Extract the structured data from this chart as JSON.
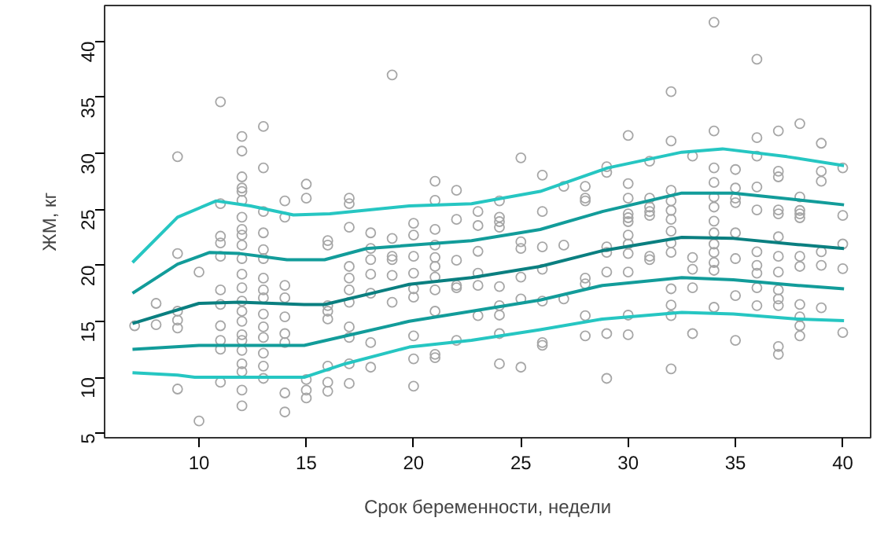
{
  "chart_data": {
    "type": "scatter",
    "xlabel": "Срок беременности, недели",
    "ylabel": "ЖМ, кг",
    "xlim": [
      5.6,
      41.3
    ],
    "ylim": [
      4.6,
      43.2
    ],
    "xticks": [
      10,
      15,
      20,
      25,
      30,
      35,
      40
    ],
    "yticks": [
      5,
      10,
      15,
      20,
      25,
      30,
      35,
      40
    ],
    "grid": false,
    "series": [
      {
        "type": "scatter",
        "color": "#a6a6a6",
        "marker": "circle",
        "x": [
          7,
          8,
          8,
          9,
          9,
          9,
          9,
          9,
          9,
          10,
          10,
          11,
          11,
          11,
          11,
          11,
          11,
          11,
          11,
          11,
          11,
          11,
          12,
          12,
          12,
          12,
          12,
          12,
          12,
          12,
          12,
          12,
          12,
          12,
          12,
          12,
          12,
          12,
          12,
          12,
          12,
          12,
          12,
          12,
          12,
          13,
          13,
          13,
          13,
          13,
          13,
          13,
          13,
          13,
          13,
          13,
          13,
          13,
          13,
          13,
          14,
          14,
          14,
          14,
          14,
          14,
          14,
          14,
          14,
          15,
          15,
          15,
          15,
          15,
          16,
          16,
          16,
          16,
          16,
          16,
          16,
          16,
          17,
          17,
          17,
          17,
          17,
          17,
          17,
          17,
          17,
          17,
          17,
          18,
          18,
          18,
          18,
          18,
          18,
          18,
          19,
          19,
          19,
          19,
          19,
          19,
          20,
          20,
          20,
          20,
          20,
          20,
          20,
          20,
          20,
          21,
          21,
          21,
          21,
          21,
          21,
          21,
          21,
          21,
          21,
          21,
          22,
          22,
          22,
          22,
          22,
          22,
          23,
          23,
          23,
          23,
          23,
          23,
          24,
          24,
          24,
          24,
          24,
          24,
          24,
          24,
          24,
          25,
          25,
          25,
          25,
          25,
          25,
          26,
          26,
          26,
          26,
          26,
          26,
          26,
          27,
          27,
          27,
          28,
          28,
          28,
          28,
          28,
          28,
          28,
          29,
          29,
          29,
          29,
          29,
          29,
          29,
          30,
          30,
          30,
          30,
          30,
          30,
          30,
          30,
          30,
          30,
          30,
          30,
          31,
          31,
          31,
          31,
          31,
          31,
          31,
          32,
          32,
          32,
          32,
          32,
          32,
          32,
          32,
          32,
          32,
          32,
          32,
          32,
          33,
          33,
          33,
          33,
          33,
          34,
          34,
          34,
          34,
          34,
          34,
          34,
          34,
          34,
          34,
          34,
          34,
          34,
          35,
          35,
          35,
          35,
          35,
          35,
          35,
          35,
          36,
          36,
          36,
          36,
          36,
          36,
          36,
          36,
          36,
          36,
          37,
          37,
          37,
          37,
          37,
          37,
          37,
          37,
          37,
          37,
          37,
          37,
          37,
          38,
          38,
          38,
          38,
          38,
          38,
          38,
          38,
          38,
          38,
          38,
          39,
          39,
          39,
          39,
          39,
          39,
          40,
          40,
          40,
          40,
          40
        ],
        "values": [
          14.6,
          16.6,
          14.7,
          29.7,
          21.05,
          15.9,
          15.1,
          14.4,
          8.95,
          19.4,
          6.1,
          34.6,
          25.5,
          22.6,
          22.0,
          20.8,
          17.8,
          16.5,
          14.6,
          13.3,
          12.5,
          9.55,
          31.5,
          30.2,
          27.9,
          26.9,
          26.6,
          25.8,
          24.3,
          23.2,
          22.7,
          21.8,
          20.6,
          19.2,
          18.0,
          16.8,
          15.9,
          15.0,
          13.8,
          13.3,
          12.4,
          11.2,
          10.5,
          8.85,
          7.45,
          32.4,
          28.7,
          24.8,
          22.9,
          21.4,
          20.6,
          18.85,
          17.8,
          17.1,
          15.65,
          14.5,
          13.55,
          12.15,
          11.0,
          9.9,
          25.75,
          24.3,
          18.2,
          17.1,
          15.4,
          13.9,
          13.1,
          8.6,
          6.9,
          27.25,
          26.0,
          9.8,
          8.85,
          8.15,
          22.2,
          21.8,
          16.4,
          15.9,
          15.2,
          11.0,
          9.55,
          8.75,
          26.0,
          25.5,
          23.4,
          19.9,
          18.85,
          17.8,
          16.7,
          14.5,
          13.55,
          11.2,
          9.45,
          22.9,
          21.5,
          20.5,
          19.2,
          17.5,
          13.1,
          10.9,
          37.0,
          22.4,
          20.8,
          20.5,
          19.1,
          16.7,
          23.75,
          22.7,
          20.8,
          19.3,
          17.9,
          17.15,
          13.7,
          11.65,
          9.2,
          27.5,
          25.8,
          23.2,
          21.8,
          20.7,
          19.9,
          18.95,
          17.8,
          15.9,
          12.05,
          11.75,
          26.7,
          24.1,
          20.45,
          18.2,
          18.0,
          13.3,
          24.8,
          23.55,
          21.25,
          19.3,
          18.2,
          15.5,
          25.75,
          24.3,
          23.9,
          23.4,
          18.1,
          16.4,
          15.55,
          13.9,
          11.2,
          29.6,
          22.1,
          21.5,
          18.95,
          17.0,
          10.9,
          28.05,
          24.8,
          21.65,
          19.65,
          16.8,
          13.1,
          12.85,
          27.05,
          21.8,
          17.0,
          27.05,
          26.0,
          25.75,
          18.85,
          18.35,
          15.5,
          13.7,
          28.8,
          28.3,
          21.65,
          21.15,
          19.4,
          13.9,
          9.9,
          31.6,
          27.3,
          26.0,
          24.6,
          24.25,
          23.9,
          22.7,
          21.9,
          21.05,
          19.4,
          15.55,
          13.8,
          29.3,
          26.0,
          25.2,
          24.8,
          24.45,
          20.8,
          20.5,
          35.5,
          31.1,
          26.7,
          25.75,
          24.9,
          24.1,
          23.05,
          22.0,
          21.15,
          17.9,
          16.45,
          15.5,
          10.75,
          29.75,
          20.7,
          19.65,
          18.0,
          13.9,
          41.7,
          32.0,
          28.7,
          27.4,
          26.1,
          25.2,
          23.95,
          22.9,
          21.9,
          21.15,
          20.25,
          19.55,
          16.25,
          28.55,
          26.9,
          26.0,
          25.6,
          22.9,
          20.6,
          17.3,
          13.3,
          38.4,
          31.4,
          29.75,
          27.0,
          24.95,
          21.2,
          20.0,
          19.3,
          18.0,
          16.4,
          32.0,
          28.4,
          27.9,
          24.95,
          24.6,
          22.55,
          20.8,
          19.4,
          17.8,
          17.0,
          16.4,
          12.75,
          12.05,
          32.65,
          26.1,
          24.9,
          24.6,
          24.25,
          20.8,
          19.9,
          16.5,
          15.4,
          14.6,
          13.7,
          30.9,
          28.4,
          27.5,
          21.2,
          20.0,
          16.2,
          28.7,
          24.45,
          21.9,
          19.7,
          14.0
        ]
      },
      {
        "type": "line",
        "color": "#26c6c2",
        "line_style": "solid",
        "marker": "none",
        "x": [
          6.9,
          9.0,
          10.8,
          12.4,
          14.4,
          16.1,
          19.8,
          22.7,
          25.9,
          29.05,
          32.5,
          34.4,
          37.4,
          40.06
        ],
        "values": [
          20.25,
          24.3,
          25.75,
          25.3,
          24.5,
          24.6,
          25.3,
          25.5,
          26.6,
          28.7,
          30.1,
          30.4,
          29.7,
          28.9
        ]
      },
      {
        "type": "line",
        "color": "#129c9a",
        "line_style": "solid",
        "marker": "none",
        "x": [
          6.9,
          9.0,
          10.5,
          11.9,
          14.1,
          15.85,
          17.8,
          22.7,
          25.9,
          28.8,
          32.5,
          34.9,
          37.9,
          40.06
        ],
        "values": [
          17.5,
          20.1,
          21.15,
          21.05,
          20.5,
          20.5,
          21.5,
          22.2,
          23.2,
          24.8,
          26.45,
          26.45,
          25.85,
          25.4
        ]
      },
      {
        "type": "line",
        "color": "#0a7f80",
        "line_style": "solid",
        "marker": "none",
        "x": [
          6.9,
          10.0,
          11.9,
          14.9,
          15.85,
          19.8,
          22.7,
          25.9,
          28.8,
          32.5,
          34.9,
          37.9,
          40.06
        ],
        "values": [
          14.8,
          16.6,
          16.7,
          16.5,
          16.5,
          18.3,
          18.9,
          19.9,
          21.3,
          22.5,
          22.4,
          21.85,
          21.5
        ]
      },
      {
        "type": "line",
        "color": "#129c9a",
        "line_style": "solid",
        "marker": "none",
        "x": [
          6.9,
          10.0,
          12.4,
          14.9,
          17.3,
          19.8,
          22.7,
          25.9,
          28.8,
          32.5,
          34.9,
          37.9,
          40.06
        ],
        "values": [
          12.5,
          12.85,
          12.85,
          12.85,
          13.9,
          15.0,
          15.9,
          16.9,
          18.2,
          18.9,
          18.7,
          18.2,
          17.9
        ]
      },
      {
        "type": "line",
        "color": "#26c6c2",
        "line_style": "solid",
        "marker": "none",
        "x": [
          6.9,
          9.0,
          9.8,
          14.9,
          16.8,
          19.8,
          22.7,
          25.9,
          28.8,
          32.5,
          34.9,
          37.9,
          40.06
        ],
        "values": [
          10.4,
          10.2,
          10.0,
          10.0,
          11.2,
          12.7,
          13.3,
          14.25,
          15.2,
          15.8,
          15.65,
          15.2,
          15.05
        ]
      }
    ]
  }
}
